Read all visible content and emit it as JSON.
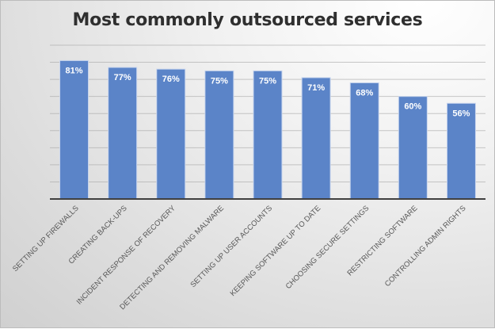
{
  "chart_data": {
    "type": "bar",
    "title": "Most commonly outsourced services",
    "xlabel": "",
    "ylabel": "",
    "ylim": [
      0,
      90
    ],
    "grid": true,
    "legend": "none",
    "value_suffix": "%",
    "categories": [
      "SETTING UP FIREWALLS",
      "CREATING BACK-UPS",
      "INCIDENT RESPONSE OF RECOVERY",
      "DETECTING AND REMOVING MALWARE",
      "SETTING UP USER ACCOUNTS",
      "KEEPING SOFTWARE UP TO DATE",
      "CHOOSING SECURE SETTINGS",
      "RESTRICTING SOFTWARE",
      "CONTROLLING ADMIN RIGHTS"
    ],
    "values": [
      81,
      77,
      76,
      75,
      75,
      71,
      68,
      60,
      56
    ],
    "data_labels": [
      "81%",
      "77%",
      "76%",
      "75%",
      "75%",
      "71%",
      "68%",
      "60%",
      "56%"
    ],
    "colors": {
      "bar": "#5b84c8",
      "bar_edge": "#c9d6ee",
      "label": "#ffffff",
      "axis": "#404040",
      "grid": "#a6a6a6"
    }
  }
}
